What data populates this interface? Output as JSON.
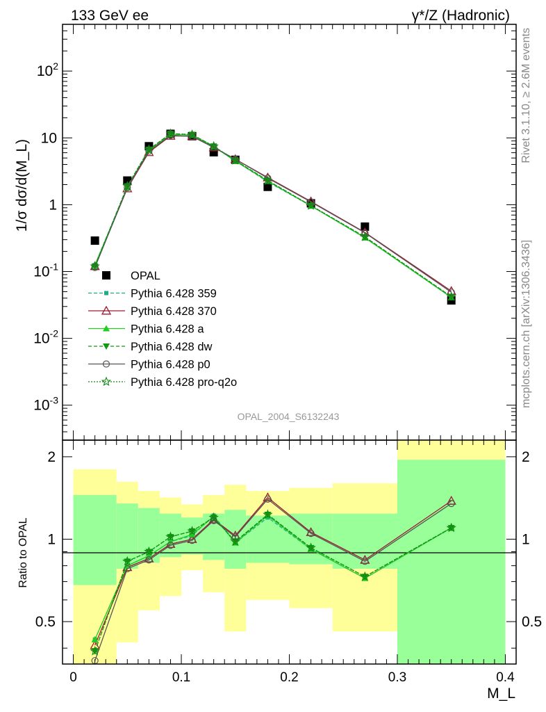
{
  "header": {
    "left": "133 GeV ee",
    "right": "γ*/Z (Hadronic)"
  },
  "side_labels": {
    "rivet": "Rivet 3.1.10, ≥ 2.6M events",
    "mcplots": "mcplots.cern.ch [arXiv:1306.3436]"
  },
  "analysis_id": "OPAL_2004_S6132243",
  "colors": {
    "band_inner": "#99ff99",
    "band_outer": "#ffff99",
    "359": "#22aa88",
    "370": "#9b1b30",
    "a": "#22cc22",
    "dw": "#119911",
    "p0": "#555555",
    "pro-q2o": "#118811"
  },
  "chart_data": [
    {
      "type": "scatter",
      "panel": "main",
      "ylabel": "1/σ dσ/d(M_L)",
      "yscale": "log",
      "ylim": [
        0.0003,
        500
      ],
      "xlim": [
        -0.01,
        0.41
      ],
      "ytick_labels": [
        "10^-3",
        "10^-2",
        "10^-1",
        "1",
        "10",
        "10^2"
      ],
      "legend_position": "left-middle",
      "x": [
        0.02,
        0.05,
        0.07,
        0.09,
        0.11,
        0.13,
        0.15,
        0.18,
        0.22,
        0.27,
        0.35
      ],
      "series": [
        {
          "name": "OPAL",
          "key": "opal",
          "marker": "square",
          "values": [
            0.29,
            2.3,
            7.5,
            11.5,
            10.6,
            6.1,
            4.7,
            1.85,
            1.05,
            0.47,
            0.037
          ]
        },
        {
          "name": "Pythia 6.428 359",
          "key": "359",
          "marker": "small-square",
          "dash": "5,3",
          "values": [
            0.125,
            1.85,
            6.6,
            11.3,
            11.0,
            7.4,
            4.5,
            2.2,
            0.96,
            0.32,
            0.041
          ]
        },
        {
          "name": "Pythia 6.428 370",
          "key": "370",
          "marker": "triangle-open",
          "dash": "",
          "values": [
            0.12,
            1.75,
            6.1,
            10.7,
            10.6,
            7.2,
            4.8,
            2.55,
            1.12,
            0.385,
            0.051
          ]
        },
        {
          "name": "Pythia 6.428 a",
          "key": "a",
          "marker": "triangle",
          "dash": "",
          "values": [
            0.125,
            1.8,
            6.5,
            11.2,
            11.0,
            7.4,
            4.5,
            2.25,
            0.96,
            0.32,
            0.041
          ]
        },
        {
          "name": "Pythia 6.428 dw",
          "key": "dw",
          "marker": "triangle-down",
          "dash": "5,3",
          "values": [
            0.12,
            1.9,
            6.7,
            11.6,
            11.2,
            7.5,
            4.6,
            2.3,
            0.97,
            0.33,
            0.042
          ]
        },
        {
          "name": "Pythia 6.428 p0",
          "key": "p0",
          "marker": "circle-open",
          "dash": "",
          "values": [
            0.115,
            1.8,
            6.3,
            10.9,
            10.5,
            7.2,
            4.8,
            2.5,
            1.1,
            0.38,
            0.049
          ]
        },
        {
          "name": "Pythia 6.428 pro-q2o",
          "key": "pro-q2o",
          "marker": "star",
          "dash": "2,2",
          "values": [
            0.12,
            1.9,
            6.7,
            11.6,
            11.2,
            7.5,
            4.6,
            2.3,
            0.97,
            0.33,
            0.042
          ]
        }
      ]
    },
    {
      "type": "scatter",
      "panel": "ratio",
      "ylabel": "Ratio to OPAL",
      "xlabel": "M_L",
      "yscale": "log",
      "ylim": [
        0.35,
        2.3
      ],
      "xlim": [
        -0.01,
        0.41
      ],
      "ytick_labels": [
        "0.5",
        "1",
        "2"
      ],
      "xtick_labels": [
        "0",
        "0.1",
        "0.2",
        "0.3",
        "0.4"
      ],
      "reference_line": 1,
      "bins": [
        {
          "x0": 0.0,
          "x1": 0.04,
          "inner": [
            0.68,
            1.45
          ],
          "outer": [
            0.35,
            1.8
          ]
        },
        {
          "x0": 0.04,
          "x1": 0.06,
          "inner": [
            0.78,
            1.35
          ],
          "outer": [
            0.42,
            1.62
          ]
        },
        {
          "x0": 0.06,
          "x1": 0.08,
          "inner": [
            0.82,
            1.3
          ],
          "outer": [
            0.55,
            1.5
          ]
        },
        {
          "x0": 0.08,
          "x1": 0.1,
          "inner": [
            0.86,
            1.24
          ],
          "outer": [
            0.62,
            1.42
          ]
        },
        {
          "x0": 0.1,
          "x1": 0.12,
          "inner": [
            0.88,
            1.2
          ],
          "outer": [
            0.77,
            1.34
          ]
        },
        {
          "x0": 0.12,
          "x1": 0.14,
          "inner": [
            0.84,
            1.24
          ],
          "outer": [
            0.64,
            1.45
          ]
        },
        {
          "x0": 0.14,
          "x1": 0.16,
          "inner": [
            0.78,
            1.28
          ],
          "outer": [
            0.46,
            1.58
          ]
        },
        {
          "x0": 0.16,
          "x1": 0.2,
          "inner": [
            0.82,
            1.22
          ],
          "outer": [
            0.6,
            1.5
          ]
        },
        {
          "x0": 0.2,
          "x1": 0.24,
          "inner": [
            0.81,
            1.24
          ],
          "outer": [
            0.56,
            1.54
          ]
        },
        {
          "x0": 0.24,
          "x1": 0.3,
          "inner": [
            0.78,
            1.24
          ],
          "outer": [
            0.46,
            1.6
          ]
        },
        {
          "x0": 0.3,
          "x1": 0.4,
          "inner": [
            0.35,
            1.95
          ],
          "outer": [
            0.35,
            2.3
          ]
        }
      ],
      "x": [
        0.02,
        0.05,
        0.07,
        0.09,
        0.11,
        0.13,
        0.15,
        0.18,
        0.22,
        0.27,
        0.35
      ],
      "series": [
        {
          "name": "Pythia 6.428 359",
          "key": "359",
          "marker": "small-square",
          "dash": "5,3",
          "values": [
            0.43,
            0.8,
            0.87,
            0.98,
            1.03,
            1.22,
            0.97,
            1.2,
            0.92,
            0.72,
            1.1
          ]
        },
        {
          "name": "Pythia 6.428 370",
          "key": "370",
          "marker": "triangle-open",
          "dash": "",
          "values": [
            0.41,
            0.79,
            0.85,
            0.96,
            1.0,
            1.18,
            1.03,
            1.42,
            1.06,
            0.84,
            1.38
          ]
        },
        {
          "name": "Pythia 6.428 a",
          "key": "a",
          "marker": "triangle",
          "dash": "",
          "values": [
            0.43,
            0.8,
            0.87,
            0.98,
            1.04,
            1.21,
            0.97,
            1.22,
            0.92,
            0.72,
            1.1
          ]
        },
        {
          "name": "Pythia 6.428 dw",
          "key": "dw",
          "marker": "triangle-down",
          "dash": "5,3",
          "values": [
            0.39,
            0.83,
            0.9,
            1.02,
            1.07,
            1.2,
            0.98,
            1.23,
            0.93,
            0.73,
            1.1
          ]
        },
        {
          "name": "Pythia 6.428 p0",
          "key": "p0",
          "marker": "circle-open",
          "dash": "",
          "values": [
            0.36,
            0.78,
            0.84,
            0.95,
            0.99,
            1.17,
            1.02,
            1.4,
            1.05,
            0.83,
            1.35
          ]
        },
        {
          "name": "Pythia 6.428 pro-q2o",
          "key": "pro-q2o",
          "marker": "star",
          "dash": "2,2",
          "values": [
            0.39,
            0.83,
            0.9,
            1.02,
            1.07,
            1.2,
            0.98,
            1.23,
            0.93,
            0.73,
            1.1
          ]
        }
      ]
    }
  ]
}
